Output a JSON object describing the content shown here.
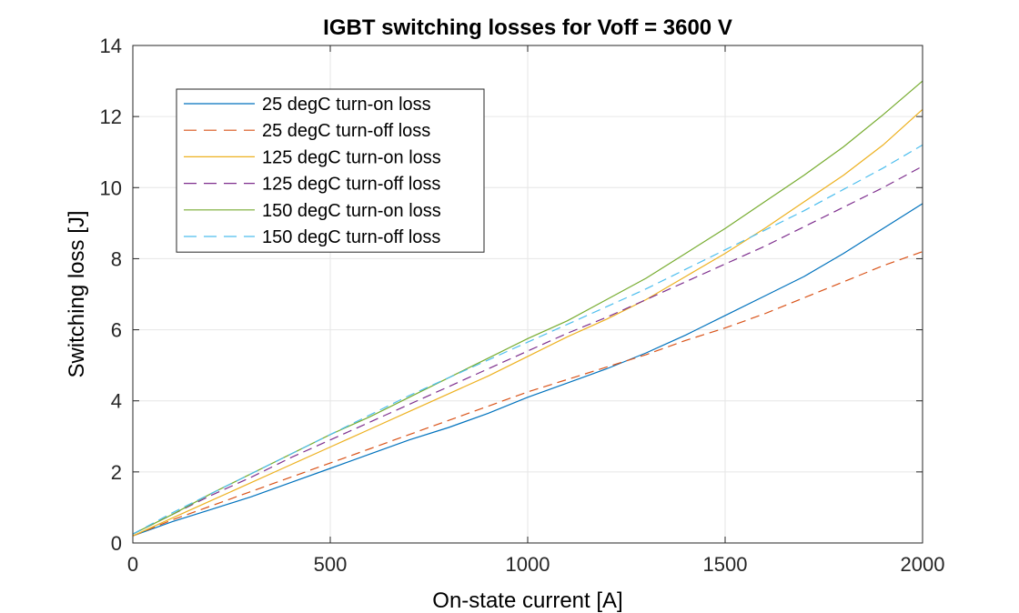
{
  "chart_data": {
    "type": "line",
    "title": "IGBT switching losses for Voff = 3600 V",
    "xlabel": "On-state current [A]",
    "ylabel": "Switching loss [J]",
    "xlim": [
      0,
      2000
    ],
    "ylim": [
      0,
      14
    ],
    "xticks": [
      0,
      500,
      1000,
      1500,
      2000
    ],
    "yticks": [
      0,
      2,
      4,
      6,
      8,
      10,
      12,
      14
    ],
    "grid": true,
    "legend_location": "top-left",
    "x": [
      0,
      100,
      200,
      300,
      400,
      500,
      600,
      700,
      800,
      900,
      1000,
      1100,
      1200,
      1300,
      1400,
      1500,
      1600,
      1700,
      1800,
      1900,
      2000
    ],
    "series": [
      {
        "name": "25 degC turn-on loss",
        "color": "#0072BD",
        "dash": "solid",
        "values": [
          0.2,
          0.6,
          0.95,
          1.3,
          1.7,
          2.1,
          2.5,
          2.9,
          3.25,
          3.65,
          4.1,
          4.5,
          4.9,
          5.35,
          5.85,
          6.4,
          6.95,
          7.5,
          8.15,
          8.85,
          9.55
        ]
      },
      {
        "name": "25 degC turn-off loss",
        "color": "#D95319",
        "dash": "dashed",
        "values": [
          0.2,
          0.65,
          1.05,
          1.45,
          1.85,
          2.25,
          2.65,
          3.05,
          3.45,
          3.85,
          4.25,
          4.6,
          4.95,
          5.3,
          5.7,
          6.05,
          6.45,
          6.9,
          7.35,
          7.8,
          8.2
        ]
      },
      {
        "name": "125 degC turn-on loss",
        "color": "#EDB120",
        "dash": "solid",
        "values": [
          0.2,
          0.7,
          1.2,
          1.7,
          2.2,
          2.7,
          3.2,
          3.7,
          4.2,
          4.7,
          5.25,
          5.8,
          6.3,
          6.85,
          7.5,
          8.15,
          8.85,
          9.6,
          10.35,
          11.2,
          12.2
        ]
      },
      {
        "name": "125 degC turn-off loss",
        "color": "#7E2F8E",
        "dash": "dashed",
        "values": [
          0.25,
          0.8,
          1.35,
          1.85,
          2.4,
          2.9,
          3.4,
          3.9,
          4.4,
          4.9,
          5.4,
          5.9,
          6.35,
          6.85,
          7.35,
          7.85,
          8.35,
          8.9,
          9.45,
          10.0,
          10.6
        ]
      },
      {
        "name": "150 degC turn-on loss",
        "color": "#77AC30",
        "dash": "solid",
        "values": [
          0.25,
          0.8,
          1.4,
          1.95,
          2.5,
          3.05,
          3.55,
          4.1,
          4.65,
          5.2,
          5.75,
          6.25,
          6.85,
          7.45,
          8.15,
          8.85,
          9.6,
          10.35,
          11.15,
          12.05,
          13.0
        ]
      },
      {
        "name": "150 degC turn-off loss",
        "color": "#4DBEEE",
        "dash": "dashed",
        "values": [
          0.25,
          0.85,
          1.4,
          1.95,
          2.5,
          3.05,
          3.6,
          4.15,
          4.65,
          5.15,
          5.65,
          6.15,
          6.65,
          7.15,
          7.7,
          8.25,
          8.8,
          9.35,
          9.95,
          10.55,
          11.2
        ]
      }
    ]
  }
}
